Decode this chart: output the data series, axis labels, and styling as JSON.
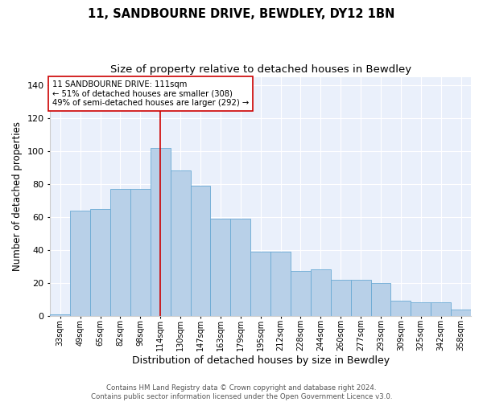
{
  "title": "11, SANDBOURNE DRIVE, BEWDLEY, DY12 1BN",
  "subtitle": "Size of property relative to detached houses in Bewdley",
  "xlabel": "Distribution of detached houses by size in Bewdley",
  "ylabel": "Number of detached properties",
  "categories": [
    "33sqm",
    "49sqm",
    "65sqm",
    "82sqm",
    "98sqm",
    "114sqm",
    "130sqm",
    "147sqm",
    "163sqm",
    "179sqm",
    "195sqm",
    "212sqm",
    "228sqm",
    "244sqm",
    "260sqm",
    "277sqm",
    "293sqm",
    "309sqm",
    "325sqm",
    "342sqm",
    "358sqm"
  ],
  "bar_values": [
    1,
    64,
    65,
    77,
    77,
    102,
    88,
    79,
    59,
    59,
    39,
    39,
    27,
    28,
    22,
    22,
    20,
    9,
    8,
    8,
    4
  ],
  "ylim": [
    0,
    145
  ],
  "yticks": [
    0,
    20,
    40,
    60,
    80,
    100,
    120,
    140
  ],
  "bar_color": "#b8d0e8",
  "bar_edge_color": "#6aaad4",
  "vline_color": "#cc0000",
  "annotation_text": "11 SANDBOURNE DRIVE: 111sqm\n← 51% of detached houses are smaller (308)\n49% of semi-detached houses are larger (292) →",
  "annotation_box_color": "#ffffff",
  "annotation_box_edge": "#cc0000",
  "background_color": "#eaf0fb",
  "footer": "Contains HM Land Registry data © Crown copyright and database right 2024.\nContains public sector information licensed under the Open Government Licence v3.0.",
  "title_fontsize": 10.5,
  "subtitle_fontsize": 9.5,
  "ylabel_fontsize": 8.5,
  "xlabel_fontsize": 9
}
